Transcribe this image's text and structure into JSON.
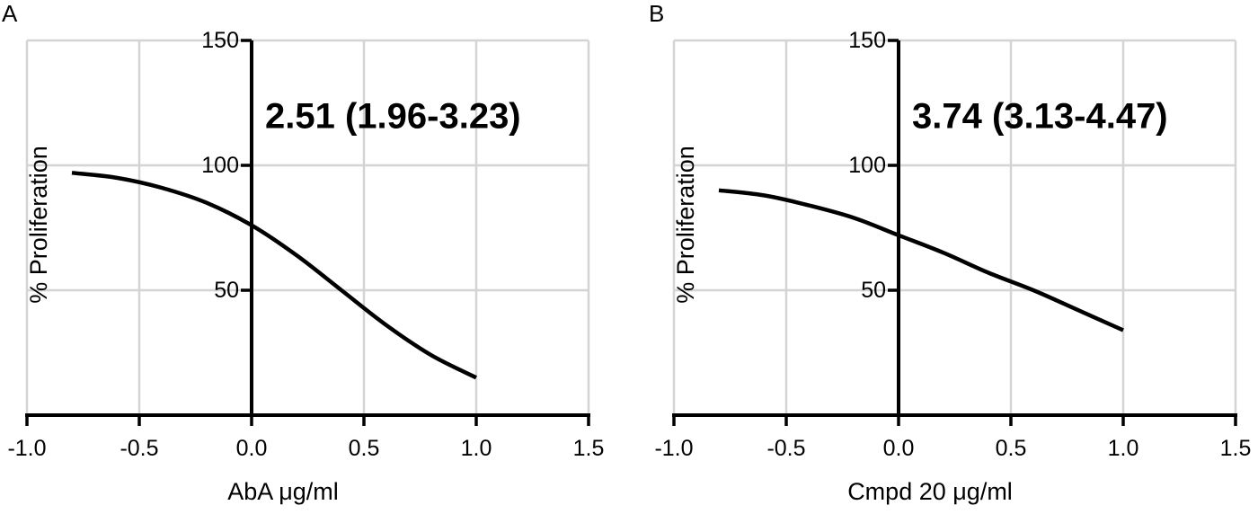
{
  "chart_data": [
    {
      "panel_label": "A",
      "type": "line",
      "xlabel": "AbA μg/ml",
      "ylabel": "% Proliferation",
      "annotation": "2.51 (1.96-3.23)",
      "xlim": [
        -1.0,
        1.5
      ],
      "ylim": [
        0,
        150
      ],
      "xticks": [
        "-1.0",
        "-0.5",
        "0.0",
        "0.5",
        "1.0",
        "1.5"
      ],
      "yticks": [
        "50",
        "100",
        "150"
      ],
      "grid": true,
      "series": [
        {
          "x": [
            -0.8,
            -0.6,
            -0.4,
            -0.2,
            0.0,
            0.2,
            0.4,
            0.6,
            0.8,
            1.0
          ],
          "y": [
            97,
            95,
            91,
            85,
            76,
            64,
            50,
            36,
            24,
            15
          ]
        }
      ]
    },
    {
      "panel_label": "B",
      "type": "line",
      "xlabel": "Cmpd 20 μg/ml",
      "ylabel": "% Proliferation",
      "annotation": "3.74 (3.13-4.47)",
      "xlim": [
        -1.0,
        1.5
      ],
      "ylim": [
        0,
        150
      ],
      "xticks": [
        "-1.0",
        "-0.5",
        "0.0",
        "0.5",
        "1.0",
        "1.5"
      ],
      "yticks": [
        "50",
        "100",
        "150"
      ],
      "grid": true,
      "series": [
        {
          "x": [
            -0.8,
            -0.6,
            -0.4,
            -0.2,
            0.0,
            0.2,
            0.4,
            0.6,
            0.8,
            1.0
          ],
          "y": [
            90,
            88,
            84,
            79,
            72,
            65,
            57,
            50,
            42,
            34
          ]
        }
      ]
    }
  ]
}
